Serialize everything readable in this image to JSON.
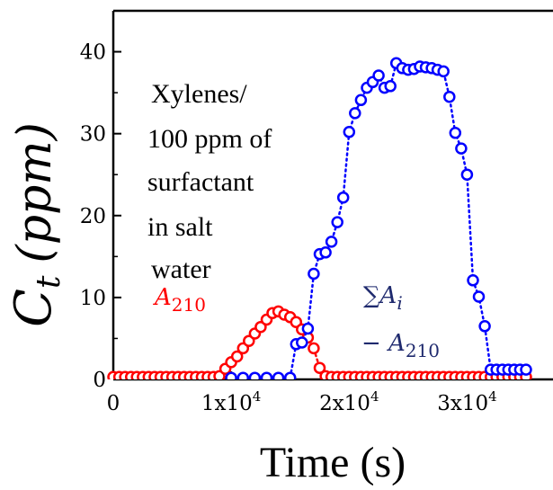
{
  "chart_data": {
    "type": "scatter",
    "ylabel": {
      "main": "C",
      "sub": "t",
      "unit": "(ppm)"
    },
    "xlabel": "Time (s)",
    "xlim": [
      0,
      35000
    ],
    "ylim": [
      0,
      45
    ],
    "x_ticks": [
      {
        "value": 0,
        "label": "0"
      },
      {
        "value": 10000,
        "base": "1x10",
        "exp": "4"
      },
      {
        "value": 20000,
        "base": "2x10",
        "exp": "4"
      },
      {
        "value": 30000,
        "base": "3x10",
        "exp": "4"
      }
    ],
    "y_ticks": [
      0,
      10,
      20,
      30,
      40
    ],
    "annotation": [
      "Xylenes/",
      "100 ppm of",
      "surfactant",
      "in salt",
      "water"
    ],
    "series": [
      {
        "name": "A210",
        "label_parts": {
          "main": "A",
          "sub": "210"
        },
        "color": "#ff0000",
        "x": [
          0,
          500,
          1000,
          1500,
          2000,
          2500,
          3000,
          3500,
          4000,
          4500,
          5000,
          5500,
          6000,
          6500,
          7000,
          7500,
          8000,
          8500,
          9000,
          9500,
          10000,
          10500,
          11000,
          11500,
          12000,
          12500,
          13000,
          13500,
          14000,
          14500,
          15000,
          15500,
          16000,
          16500,
          17000,
          17500,
          18000,
          18500,
          19000,
          19500,
          20000,
          20500,
          21000,
          21500,
          22000,
          22500,
          23000,
          23500,
          24000,
          24500,
          25000,
          25500,
          26000,
          26500,
          27000,
          27500,
          28000,
          28500,
          29000,
          29500,
          30000,
          30500,
          31000,
          31500,
          32000,
          32500,
          33000,
          33500,
          34000,
          34500,
          35000
        ],
        "y": [
          0.3,
          0.3,
          0.3,
          0.3,
          0.3,
          0.3,
          0.3,
          0.3,
          0.3,
          0.3,
          0.3,
          0.3,
          0.3,
          0.3,
          0.3,
          0.3,
          0.3,
          0.3,
          0.4,
          1.3,
          2.1,
          2.8,
          3.8,
          4.7,
          5.6,
          6.4,
          7.3,
          8.1,
          8.3,
          7.9,
          7.6,
          7.0,
          6.1,
          5.1,
          3.8,
          1.4,
          0.4,
          0.3,
          0.3,
          0.3,
          0.3,
          0.3,
          0.3,
          0.3,
          0.3,
          0.3,
          0.3,
          0.3,
          0.3,
          0.3,
          0.3,
          0.3,
          0.3,
          0.3,
          0.3,
          0.3,
          0.3,
          0.3,
          0.3,
          0.3,
          0.3,
          0.3,
          0.3,
          0.3,
          0.3,
          0.3,
          0.3,
          0.3,
          0.3,
          0.3,
          0.3
        ]
      },
      {
        "name": "ΣAi − A210",
        "label_parts": {
          "sum": "∑A",
          "sub_i": "i",
          "minus": "− A",
          "sub": "210"
        },
        "color": "#0000ff",
        "x": [
          10000,
          11000,
          12000,
          13000,
          14000,
          15000,
          15500,
          16000,
          16500,
          17000,
          17500,
          18000,
          18500,
          19000,
          19500,
          20000,
          20500,
          21000,
          21500,
          22000,
          22500,
          23000,
          23500,
          24000,
          24500,
          25000,
          25500,
          26000,
          26500,
          27000,
          27500,
          28000,
          28500,
          29000,
          29500,
          30000,
          30500,
          31000,
          31500,
          32000,
          32500,
          33000,
          33500,
          34000,
          34500,
          35000
        ],
        "y": [
          0.2,
          0.2,
          0.2,
          0.2,
          0.2,
          0.2,
          4.3,
          4.5,
          6.2,
          12.9,
          15.3,
          15.5,
          16.8,
          19.2,
          22.2,
          30.2,
          32.5,
          34.1,
          35.6,
          36.3,
          37.1,
          35.6,
          35.8,
          38.6,
          38.0,
          37.8,
          37.9,
          38.2,
          38.1,
          38.0,
          37.8,
          37.6,
          34.5,
          30.1,
          28.2,
          25.0,
          12.1,
          10.1,
          6.5,
          1.2,
          1.2,
          1.2,
          1.2,
          1.2,
          1.2,
          1.2
        ]
      }
    ]
  }
}
